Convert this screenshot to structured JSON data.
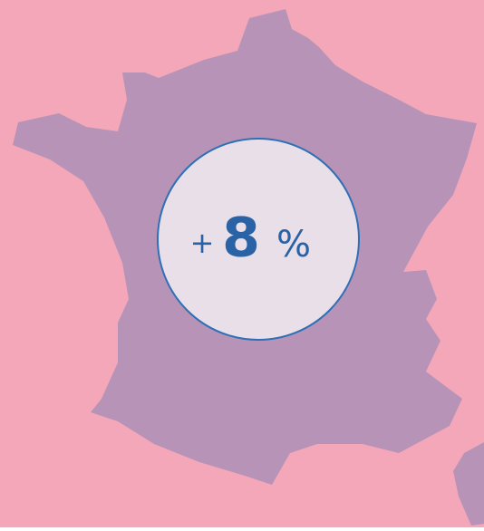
{
  "badge": {
    "sign": "+",
    "value": 8,
    "unit": "%"
  }
}
